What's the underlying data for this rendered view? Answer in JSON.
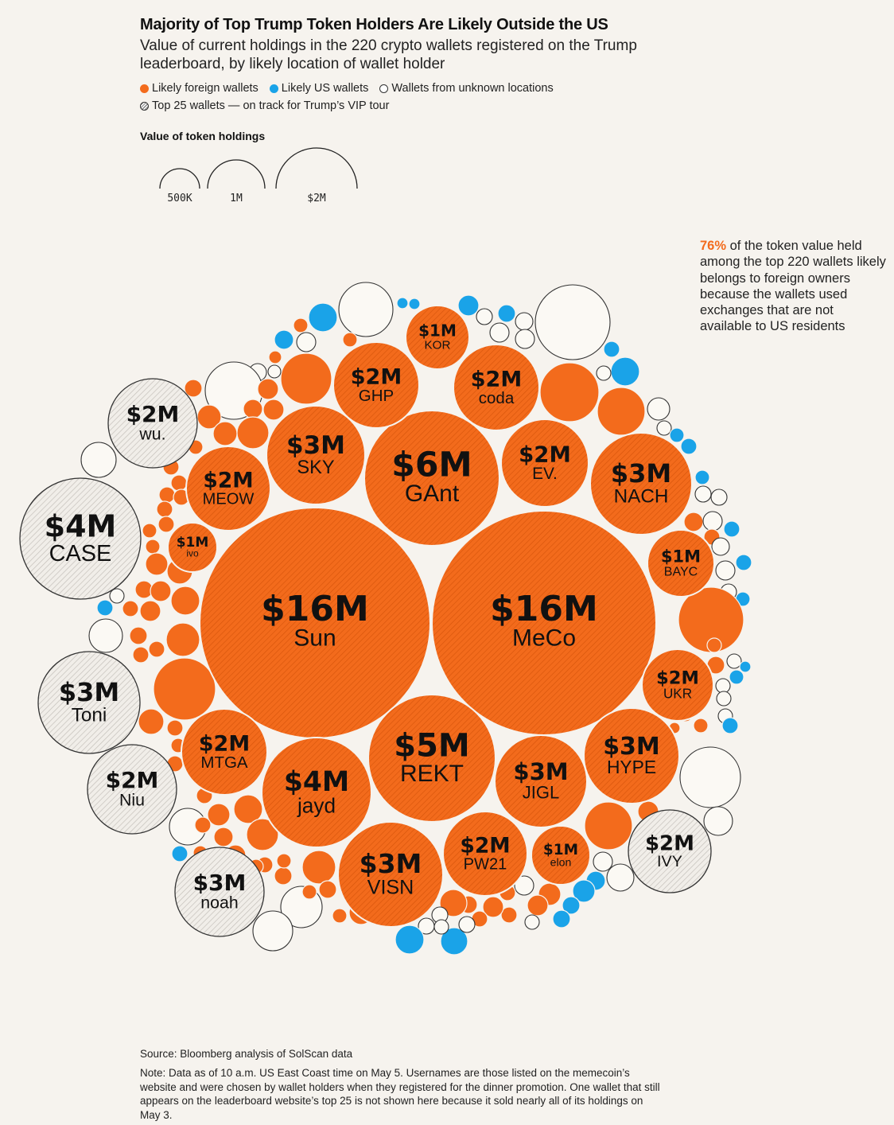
{
  "title": "Majority of Top Trump Token Holders Are Likely Outside the US",
  "subtitle": "Value of current holdings in the 220 crypto wallets registered on the Trump leaderboard, by likely location of wallet holder",
  "legend": {
    "foreign": "Likely foreign wallets",
    "us": "Likely US wallets",
    "unknown": "Wallets from unknown locations",
    "top25": "Top 25 wallets — on track for Trump’s VIP tour"
  },
  "size_legend": {
    "title": "Value of token holdings",
    "items": [
      {
        "label": "500K",
        "value": 0.5
      },
      {
        "label": "1M",
        "value": 1
      },
      {
        "label": "$2M",
        "value": 2
      }
    ]
  },
  "annotation": {
    "highlight": "76%",
    "text": " of the token value held among the top 220 wallets likely belongs to foreign owners because the wallets used exchanges that are not available to US residents"
  },
  "source": "Source: Bloomberg analysis of SolScan data",
  "note": "Note: Data as of 10 a.m. US East Coast time on May 5. Usernames are those listed on the memecoin’s website and were chosen by wallet holders when they registered for the dinner promotion. One wallet that still appears on the leaderboard website’s top 25 is not shown here because it sold nearly all of its holdings on May 3.",
  "colors": {
    "foreign": "#f36b1c",
    "us": "#1aa3e8",
    "unknown": "#fbf9f4",
    "top25_unknown": "#e6e3de",
    "background": "#f6f3ee"
  },
  "chart_data": {
    "type": "bubble",
    "value_unit": "USD millions",
    "labeled_wallets": [
      {
        "name": "Sun",
        "value_label": "$16M",
        "value": 16,
        "location": "foreign"
      },
      {
        "name": "MeCo",
        "value_label": "$16M",
        "value": 16,
        "location": "foreign"
      },
      {
        "name": "GAnt",
        "value_label": "$6M",
        "value": 6,
        "location": "foreign"
      },
      {
        "name": "REKT",
        "value_label": "$5M",
        "value": 5,
        "location": "foreign"
      },
      {
        "name": "jayd",
        "value_label": "$4M",
        "value": 4,
        "location": "foreign"
      },
      {
        "name": "CASE",
        "value_label": "$4M",
        "value": 4,
        "location": "unknown"
      },
      {
        "name": "SKY",
        "value_label": "$3M",
        "value": 3,
        "location": "foreign"
      },
      {
        "name": "NACH",
        "value_label": "$3M",
        "value": 3,
        "location": "foreign"
      },
      {
        "name": "HYPE",
        "value_label": "$3M",
        "value": 3,
        "location": "foreign"
      },
      {
        "name": "VISN",
        "value_label": "$3M",
        "value": 3,
        "location": "foreign"
      },
      {
        "name": "JIGL",
        "value_label": "$3M",
        "value": 3,
        "location": "foreign"
      },
      {
        "name": "Toni",
        "value_label": "$3M",
        "value": 3,
        "location": "unknown"
      },
      {
        "name": "noah",
        "value_label": "$3M",
        "value": 3,
        "location": "unknown"
      },
      {
        "name": "GHP",
        "value_label": "$2M",
        "value": 2,
        "location": "foreign"
      },
      {
        "name": "coda",
        "value_label": "$2M",
        "value": 2,
        "location": "foreign"
      },
      {
        "name": "MEOW",
        "value_label": "$2M",
        "value": 2,
        "location": "foreign"
      },
      {
        "name": "EV.",
        "value_label": "$2M",
        "value": 2,
        "location": "foreign"
      },
      {
        "name": "MTGA",
        "value_label": "$2M",
        "value": 2,
        "location": "foreign"
      },
      {
        "name": "UKR",
        "value_label": "$2M",
        "value": 2,
        "location": "foreign"
      },
      {
        "name": "PW21",
        "value_label": "$2M",
        "value": 2,
        "location": "foreign"
      },
      {
        "name": "wu.",
        "value_label": "$2M",
        "value": 2,
        "location": "unknown"
      },
      {
        "name": "Niu",
        "value_label": "$2M",
        "value": 2,
        "location": "unknown"
      },
      {
        "name": "IVY",
        "value_label": "$2M",
        "value": 2,
        "location": "unknown"
      },
      {
        "name": "KOR",
        "value_label": "$1M",
        "value": 1,
        "location": "foreign"
      },
      {
        "name": "BAYC",
        "value_label": "$1M",
        "value": 1,
        "location": "foreign"
      },
      {
        "name": "ivo",
        "value_label": "$1M",
        "value": 1,
        "location": "foreign"
      },
      {
        "name": "elon",
        "value_label": "$1M",
        "value": 1,
        "location": "foreign"
      }
    ],
    "foreign_share_of_value_pct": 76,
    "total_wallets": 220
  }
}
